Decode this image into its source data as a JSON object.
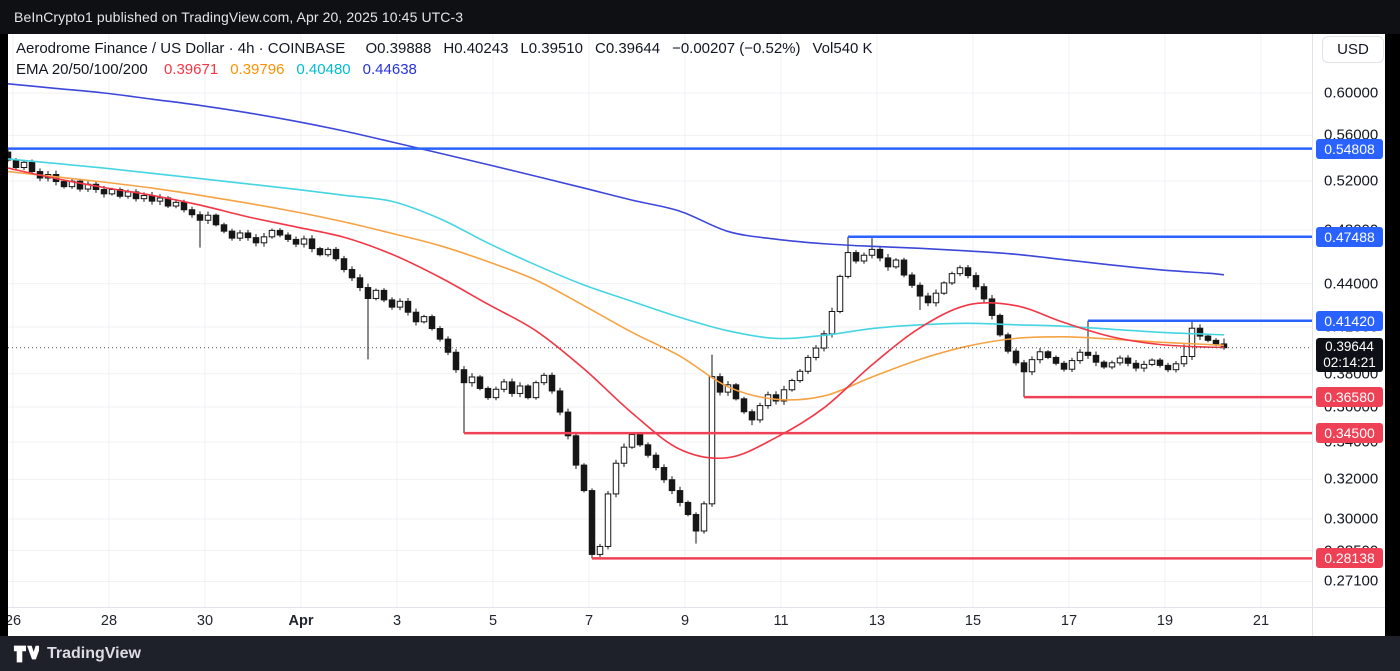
{
  "top_bar": {
    "text": "BeInCrypto1 published on TradingView.com, Apr 20, 2025 10:45 UTC-3"
  },
  "legend": {
    "symbol_line": "Aerodrome Finance / US Dollar · 4h · COINBASE",
    "ohlc_items": [
      "O0.39888",
      "H0.40243",
      "L0.39510",
      "C0.39644",
      "−0.00207 (−0.52%)",
      "Vol540 K"
    ],
    "ema_label": "EMA 20/50/100/200",
    "ema_values": [
      {
        "v": "0.39671",
        "color": "#f23645"
      },
      {
        "v": "0.39796",
        "color": "#ff9100"
      },
      {
        "v": "0.40480",
        "color": "#00bcd4"
      },
      {
        "v": "0.44638",
        "color": "#2631e0"
      }
    ]
  },
  "price_axis": {
    "currency": "USD",
    "ticks": [
      {
        "label": "0.60000",
        "price": 0.6
      },
      {
        "label": "0.56000",
        "price": 0.56
      },
      {
        "label": "0.52000",
        "price": 0.52
      },
      {
        "label": "0.48000",
        "price": 0.48
      },
      {
        "label": "0.44000",
        "price": 0.44
      },
      {
        "label": "0.41000",
        "price": 0.41
      },
      {
        "label": "0.38000",
        "price": 0.38
      },
      {
        "label": "0.36000",
        "price": 0.36
      },
      {
        "label": "0.34000",
        "price": 0.34
      },
      {
        "label": "0.32000",
        "price": 0.32
      },
      {
        "label": "0.30000",
        "price": 0.3
      },
      {
        "label": "0.28500",
        "price": 0.285
      },
      {
        "label": "0.27100",
        "price": 0.271
      }
    ],
    "current": {
      "price_label": "0.39644",
      "countdown": "02:14:21",
      "price": 0.39644
    }
  },
  "time_axis": {
    "labels": [
      {
        "label": "26",
        "day": 0
      },
      {
        "label": "28",
        "day": 2
      },
      {
        "label": "30",
        "day": 4
      },
      {
        "label": "Apr",
        "day": 6,
        "bold": true
      },
      {
        "label": "3",
        "day": 8
      },
      {
        "label": "5",
        "day": 10
      },
      {
        "label": "7",
        "day": 12
      },
      {
        "label": "9",
        "day": 14
      },
      {
        "label": "11",
        "day": 16
      },
      {
        "label": "13",
        "day": 18
      },
      {
        "label": "15",
        "day": 20
      },
      {
        "label": "17",
        "day": 22
      },
      {
        "label": "19",
        "day": 24
      },
      {
        "label": "21",
        "day": 26
      }
    ]
  },
  "footer": {
    "brand": "TradingView"
  },
  "chart_data": {
    "type": "candlestick",
    "title": "Aerodrome Finance / US Dollar",
    "interval": "4h",
    "exchange": "COINBASE",
    "grid": true,
    "scale": "log",
    "x_range": [
      "Mar 26",
      "Apr 21"
    ],
    "candles_per_day": 6,
    "first_open": 0.545,
    "closes": [
      0.538,
      0.5315,
      0.536,
      0.528,
      0.5225,
      0.5255,
      0.5195,
      0.5152,
      0.5198,
      0.5132,
      0.5172,
      0.5128,
      0.5092,
      0.5128,
      0.5072,
      0.5108,
      0.5052,
      0.5078,
      0.5032,
      0.5058,
      0.4992,
      0.5022,
      0.4962,
      0.4922,
      0.4878,
      0.4918,
      0.4842,
      0.4792,
      0.4738,
      0.4778,
      0.4742,
      0.4702,
      0.4748,
      0.4798,
      0.4762,
      0.4728,
      0.4692,
      0.4732,
      0.4658,
      0.4612,
      0.4652,
      0.4582,
      0.4502,
      0.4442,
      0.4372,
      0.4295,
      0.4352,
      0.4285,
      0.4235,
      0.4275,
      0.42,
      0.4135,
      0.417,
      0.409,
      0.402,
      0.3935,
      0.3825,
      0.3745,
      0.378,
      0.371,
      0.3655,
      0.3705,
      0.375,
      0.368,
      0.3725,
      0.3655,
      0.3745,
      0.379,
      0.3695,
      0.357,
      0.3435,
      0.3275,
      0.3142,
      0.2832,
      0.2869,
      0.3125,
      0.3285,
      0.3372,
      0.3442,
      0.3385,
      0.3328,
      0.3262,
      0.3198,
      0.3142,
      0.3082,
      0.3022,
      0.2942,
      0.3075,
      0.3782,
      0.3688,
      0.3732,
      0.3648,
      0.3572,
      0.3525,
      0.3608,
      0.3672,
      0.3635,
      0.3702,
      0.3758,
      0.3815,
      0.3902,
      0.3962,
      0.4055,
      0.4205,
      0.4452,
      0.4628,
      0.4565,
      0.4608,
      0.4652,
      0.4588,
      0.4522,
      0.4572,
      0.4462,
      0.4388,
      0.4312,
      0.4265,
      0.4332,
      0.4405,
      0.4472,
      0.4515,
      0.4458,
      0.4378,
      0.4292,
      0.4178,
      0.4048,
      0.3942,
      0.3868,
      0.3812,
      0.3888,
      0.3938,
      0.3902,
      0.3865,
      0.3828,
      0.3882,
      0.3935,
      0.3915,
      0.3872,
      0.3842,
      0.3868,
      0.3898,
      0.3865,
      0.3835,
      0.3858,
      0.3885,
      0.3852,
      0.3825,
      0.3862,
      0.3908,
      0.4092,
      0.404,
      0.4012,
      0.39888,
      0.39644
    ],
    "wick_overrides": [
      {
        "i": 0,
        "h": 0.549
      },
      {
        "i": 24,
        "l": 0.4665
      },
      {
        "i": 45,
        "l": 0.389
      },
      {
        "i": 57,
        "l": 0.345
      },
      {
        "i": 73,
        "l": 0.28138
      },
      {
        "i": 78,
        "h": 0.3455
      },
      {
        "i": 86,
        "l": 0.2882
      },
      {
        "i": 88,
        "h": 0.392
      },
      {
        "i": 93,
        "l": 0.3495
      },
      {
        "i": 105,
        "h": 0.47488
      },
      {
        "i": 108,
        "h": 0.4738
      },
      {
        "i": 114,
        "l": 0.4215
      },
      {
        "i": 127,
        "l": 0.3658
      },
      {
        "i": 135,
        "h": 0.4142
      },
      {
        "i": 147,
        "h": 0.3985
      },
      {
        "i": 148,
        "h": 0.4142
      },
      {
        "i": 152,
        "h": 0.40243,
        "l": 0.3951
      }
    ],
    "emas": [
      {
        "period": 200,
        "color": "#3d47d9",
        "last": 0.44638,
        "daily": [
          0.609,
          0.6045,
          0.6,
          0.594,
          0.588,
          0.581,
          0.573,
          0.564,
          0.554,
          0.544,
          0.534,
          0.524,
          0.514,
          0.504,
          0.495,
          0.479,
          0.473,
          0.4695,
          0.4675,
          0.466,
          0.464,
          0.4615,
          0.4575,
          0.4535,
          0.45,
          0.4475,
          0.44638
        ]
      },
      {
        "period": 100,
        "color": "#45d5e2",
        "last": 0.4048,
        "daily": [
          0.539,
          0.535,
          0.531,
          0.5265,
          0.522,
          0.5175,
          0.513,
          0.508,
          0.503,
          0.489,
          0.47,
          0.4535,
          0.439,
          0.4275,
          0.4165,
          0.4075,
          0.4025,
          0.4045,
          0.409,
          0.4115,
          0.4125,
          0.4115,
          0.4105,
          0.4085,
          0.4065,
          0.4052,
          0.4048
        ]
      },
      {
        "period": 50,
        "color": "#f5a344",
        "last": 0.39796,
        "daily": [
          0.528,
          0.5235,
          0.519,
          0.514,
          0.508,
          0.5015,
          0.4945,
          0.4865,
          0.4775,
          0.468,
          0.456,
          0.4425,
          0.4245,
          0.4065,
          0.391,
          0.372,
          0.3645,
          0.3665,
          0.378,
          0.389,
          0.3975,
          0.4025,
          0.4035,
          0.402,
          0.4,
          0.3985,
          0.39796
        ]
      },
      {
        "period": 20,
        "color": "#f23645",
        "last": 0.39671,
        "daily": [
          0.531,
          0.522,
          0.5145,
          0.508,
          0.5,
          0.4905,
          0.4825,
          0.4745,
          0.4615,
          0.4445,
          0.4255,
          0.4075,
          0.383,
          0.3565,
          0.336,
          0.3315,
          0.3425,
          0.3595,
          0.3855,
          0.4095,
          0.425,
          0.4245,
          0.413,
          0.4035,
          0.3985,
          0.3968,
          0.39671
        ]
      }
    ],
    "levels": [
      {
        "price": 0.54808,
        "label": "0.54808",
        "color": "#2962ff",
        "x0": 0
      },
      {
        "price": 0.47488,
        "label": "0.47488",
        "color": "#2962ff",
        "x0": 840
      },
      {
        "price": 0.4142,
        "label": "0.41420",
        "color": "#2962ff",
        "x0": 1080
      },
      {
        "price": 0.3658,
        "label": "0.36580",
        "color": "#ef4156",
        "x0": 1016
      },
      {
        "price": 0.345,
        "label": "0.34500",
        "color": "#ef4156",
        "x0": 456
      },
      {
        "price": 0.28138,
        "label": "0.28138",
        "color": "#ef4156",
        "x0": 584
      }
    ],
    "current_price": 0.39644,
    "up_color": "#ffffff",
    "down_color": "#161616",
    "outline_color": "#161616"
  }
}
